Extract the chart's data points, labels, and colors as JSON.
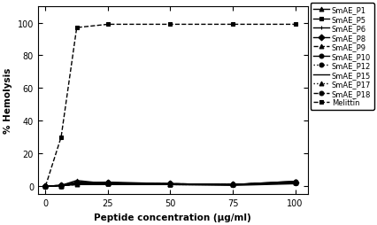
{
  "x": [
    0,
    6.25,
    12.5,
    25,
    50,
    75,
    100
  ],
  "series": {
    "SmAE_P1": [
      0,
      0.5,
      3.5,
      1.5,
      1.0,
      1.0,
      3.0
    ],
    "SmAE_P5": [
      0,
      0.3,
      2.0,
      2.5,
      1.5,
      1.0,
      2.5
    ],
    "SmAE_P6": [
      0,
      0.3,
      1.5,
      1.5,
      1.0,
      1.0,
      2.0
    ],
    "SmAE_P8": [
      0,
      0.5,
      2.0,
      2.0,
      1.5,
      1.0,
      2.5
    ],
    "SmAE_P9": [
      0,
      0.3,
      1.0,
      1.5,
      1.0,
      1.0,
      2.0
    ],
    "SmAE_P10": [
      0,
      0.5,
      2.5,
      2.0,
      1.5,
      1.0,
      3.0
    ],
    "SmAE_P12": [
      0,
      0.3,
      1.5,
      1.5,
      1.0,
      1.0,
      2.5
    ],
    "SmAE_P15": [
      0,
      0.3,
      1.0,
      1.0,
      1.0,
      0.5,
      1.5
    ],
    "SmAE_P17": [
      0,
      0.3,
      1.5,
      1.5,
      1.0,
      1.0,
      2.0
    ],
    "SmAE_P18": [
      0,
      0.5,
      2.0,
      2.0,
      1.5,
      1.0,
      2.5
    ],
    "Melittin": [
      0,
      30,
      97,
      99,
      99,
      99,
      99
    ]
  },
  "legend_entries": [
    {
      "label": "SmAE_P1",
      "linestyle": "-",
      "marker": "^"
    },
    {
      "label": "SmAE_P5",
      "linestyle": "-",
      "marker": "s"
    },
    {
      "label": "SmAE_P6",
      "linestyle": "-",
      "marker": "+"
    },
    {
      "label": "SmAE_P8",
      "linestyle": "-",
      "marker": "D"
    },
    {
      "label": "SmAE_P9",
      "linestyle": "--",
      "marker": "^"
    },
    {
      "label": "SmAE_P10",
      "linestyle": "-",
      "marker": "o"
    },
    {
      "label": "SmAE_P12",
      "linestyle": ":",
      "marker": "o"
    },
    {
      "label": "SmAE_P15",
      "linestyle": "-",
      "marker": ""
    },
    {
      "label": "SmAE_P17",
      "linestyle": ":",
      "marker": "^"
    },
    {
      "label": "SmAE_P18",
      "linestyle": "--",
      "marker": "o"
    },
    {
      "label": "Melittin",
      "linestyle": "--",
      "marker": "s"
    }
  ],
  "plot_styles": {
    "SmAE_P1": {
      "linestyle": "-",
      "marker": "^"
    },
    "SmAE_P5": {
      "linestyle": "-",
      "marker": "s"
    },
    "SmAE_P6": {
      "linestyle": "-",
      "marker": "+"
    },
    "SmAE_P8": {
      "linestyle": "-",
      "marker": "D"
    },
    "SmAE_P9": {
      "linestyle": "--",
      "marker": "^"
    },
    "SmAE_P10": {
      "linestyle": "-",
      "marker": "o"
    },
    "SmAE_P12": {
      "linestyle": ":",
      "marker": "o"
    },
    "SmAE_P15": {
      "linestyle": "-",
      "marker": ""
    },
    "SmAE_P17": {
      "linestyle": ":",
      "marker": "^"
    },
    "SmAE_P18": {
      "linestyle": "--",
      "marker": "o"
    },
    "Melittin": {
      "linestyle": "--",
      "marker": "s"
    }
  },
  "xlabel": "Peptide concentration (μg/ml)",
  "ylabel": "% Hemolysis",
  "xlim": [
    -3,
    105
  ],
  "ylim": [
    -5,
    110
  ],
  "xticks": [
    0,
    25,
    50,
    75,
    100
  ],
  "yticks": [
    0,
    20,
    40,
    60,
    80,
    100
  ],
  "color": "black",
  "linewidth": 1.0,
  "markersize": 3.5,
  "figsize": [
    4.27,
    2.55
  ],
  "dpi": 100
}
